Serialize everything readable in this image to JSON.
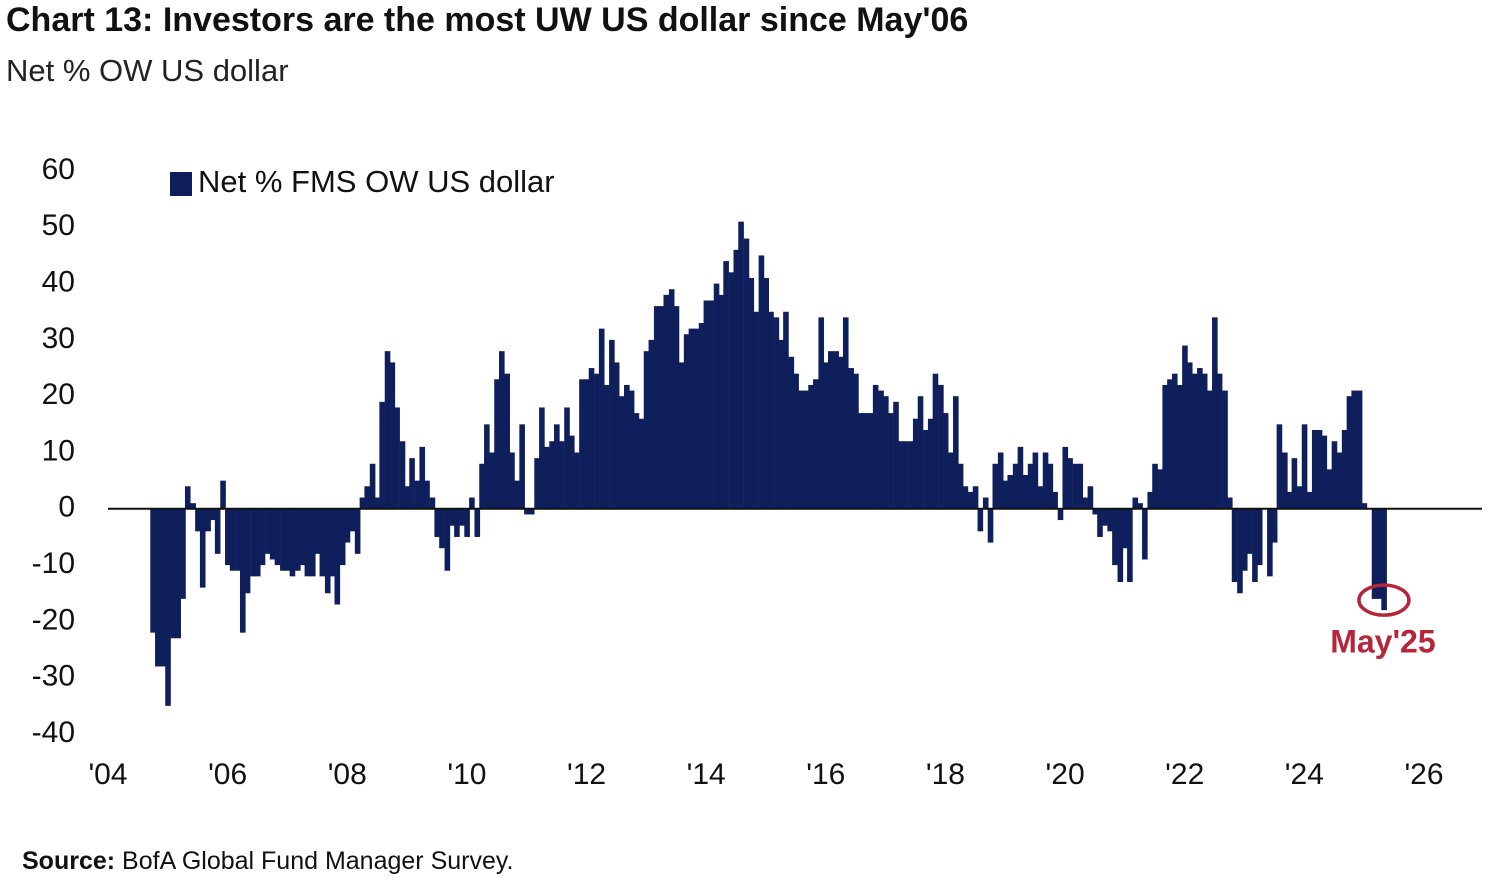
{
  "chart_data": {
    "type": "bar",
    "title": "Chart 13: Investors are the most UW US dollar since May'06",
    "subtitle": "Net % OW US dollar",
    "source_label": "Source:",
    "source_text": "BofA Global Fund Manager Survey.",
    "annotation": "May'25",
    "annotation_color": "#b5263a",
    "xlim": [
      2004,
      2026
    ],
    "xticks": [
      {
        "value": 2004,
        "label": "'04"
      },
      {
        "value": 2006,
        "label": "'06"
      },
      {
        "value": 2008,
        "label": "'08"
      },
      {
        "value": 2010,
        "label": "'10"
      },
      {
        "value": 2012,
        "label": "'12"
      },
      {
        "value": 2014,
        "label": "'14"
      },
      {
        "value": 2016,
        "label": "'16"
      },
      {
        "value": 2018,
        "label": "'18"
      },
      {
        "value": 2020,
        "label": "'20"
      },
      {
        "value": 2022,
        "label": "'22"
      },
      {
        "value": 2024,
        "label": "'24"
      },
      {
        "value": 2026,
        "label": "'26"
      }
    ],
    "ylim": [
      -40,
      60
    ],
    "yticks": [
      -40,
      -30,
      -20,
      -10,
      0,
      10,
      20,
      30,
      40,
      50,
      60
    ],
    "legend": "top-left",
    "x": [
      2004.75,
      2004.83,
      2004.92,
      2005,
      2005.08,
      2005.17,
      2005.25,
      2005.33,
      2005.42,
      2005.5,
      2005.58,
      2005.67,
      2005.75,
      2005.83,
      2005.92,
      2006,
      2006.08,
      2006.17,
      2006.25,
      2006.33,
      2006.42,
      2006.5,
      2006.58,
      2006.67,
      2006.75,
      2006.83,
      2006.92,
      2007,
      2007.08,
      2007.17,
      2007.25,
      2007.33,
      2007.42,
      2007.5,
      2007.58,
      2007.67,
      2007.75,
      2007.83,
      2007.92,
      2008,
      2008.08,
      2008.17,
      2008.25,
      2008.33,
      2008.42,
      2008.5,
      2008.58,
      2008.67,
      2008.75,
      2008.83,
      2008.92,
      2009,
      2009.08,
      2009.17,
      2009.25,
      2009.33,
      2009.42,
      2009.5,
      2009.58,
      2009.67,
      2009.75,
      2009.83,
      2009.92,
      2010,
      2010.08,
      2010.17,
      2010.25,
      2010.33,
      2010.42,
      2010.5,
      2010.58,
      2010.67,
      2010.75,
      2010.83,
      2010.92,
      2011,
      2011.08,
      2011.17,
      2011.25,
      2011.33,
      2011.42,
      2011.5,
      2011.58,
      2011.67,
      2011.75,
      2011.83,
      2011.92,
      2012,
      2012.08,
      2012.17,
      2012.25,
      2012.33,
      2012.42,
      2012.5,
      2012.58,
      2012.67,
      2012.75,
      2012.83,
      2012.92,
      2013,
      2013.08,
      2013.17,
      2013.25,
      2013.33,
      2013.42,
      2013.5,
      2013.58,
      2013.67,
      2013.75,
      2013.83,
      2013.92,
      2014,
      2014.08,
      2014.17,
      2014.25,
      2014.33,
      2014.42,
      2014.5,
      2014.58,
      2014.67,
      2014.75,
      2014.83,
      2014.92,
      2015,
      2015.08,
      2015.17,
      2015.25,
      2015.33,
      2015.42,
      2015.5,
      2015.58,
      2015.67,
      2015.75,
      2015.83,
      2015.92,
      2016,
      2016.08,
      2016.17,
      2016.25,
      2016.33,
      2016.42,
      2016.5,
      2016.58,
      2016.67,
      2016.75,
      2016.83,
      2016.92,
      2017,
      2017.08,
      2017.17,
      2017.25,
      2017.33,
      2017.42,
      2017.5,
      2017.58,
      2017.67,
      2017.75,
      2017.83,
      2017.92,
      2018,
      2018.08,
      2018.17,
      2018.25,
      2018.33,
      2018.42,
      2018.5,
      2018.58,
      2018.67,
      2018.75,
      2018.83,
      2018.92,
      2019,
      2019.08,
      2019.17,
      2019.25,
      2019.33,
      2019.42,
      2019.5,
      2019.58,
      2019.67,
      2019.75,
      2019.83,
      2019.92,
      2020,
      2020.08,
      2020.17,
      2020.25,
      2020.33,
      2020.42,
      2020.5,
      2020.58,
      2020.67,
      2020.75,
      2020.83,
      2020.92,
      2021,
      2021.08,
      2021.17,
      2021.25,
      2021.33,
      2021.42,
      2021.5,
      2021.58,
      2021.67,
      2021.75,
      2021.83,
      2021.92,
      2022,
      2022.08,
      2022.17,
      2022.25,
      2022.33,
      2022.42,
      2022.5,
      2022.58,
      2022.67,
      2022.75,
      2022.83,
      2022.92,
      2023,
      2023.08,
      2023.17,
      2023.25,
      2023.33,
      2023.42,
      2023.5,
      2023.58,
      2023.67,
      2023.75,
      2023.83,
      2023.92,
      2024,
      2024.08,
      2024.17,
      2024.25,
      2024.33,
      2024.42,
      2024.5,
      2024.58,
      2024.67,
      2024.75,
      2024.83,
      2024.92,
      2025,
      2025.08,
      2025.17,
      2025.25,
      2025.33
    ],
    "series": [
      {
        "name": "Net % FMS OW US dollar",
        "color": "#0f1f5c",
        "values": [
          -22,
          -28,
          -28,
          -35,
          -23,
          -23,
          -16,
          4,
          1,
          -4,
          -14,
          -4,
          -2,
          -8,
          5,
          -10,
          -11,
          -11,
          -22,
          -15,
          -12,
          -12,
          -10,
          -8,
          -9,
          -10,
          -11,
          -11,
          -12,
          -11,
          -10,
          -12,
          -12,
          -8,
          -12,
          -15,
          -12,
          -17,
          -10,
          -6,
          -4,
          -8,
          2,
          4,
          8,
          2,
          19,
          28,
          26,
          18,
          12,
          4,
          9,
          5,
          11,
          5,
          2,
          -5,
          -7,
          -11,
          -3,
          -5,
          -3,
          -5,
          2,
          -5,
          8,
          15,
          10,
          23,
          28,
          24,
          10,
          5,
          15,
          -1,
          -1,
          9,
          18,
          11,
          12,
          15,
          12,
          18,
          13,
          10,
          23,
          23,
          25,
          24,
          32,
          22,
          30,
          26,
          20,
          22,
          21,
          17,
          16,
          28,
          30,
          36,
          36,
          38,
          39,
          36,
          26,
          31,
          32,
          32,
          33,
          37,
          37,
          40,
          38,
          44,
          42,
          46,
          51,
          48,
          41,
          35,
          45,
          41,
          35,
          34,
          30,
          35,
          27,
          24,
          21,
          21,
          22,
          23,
          34,
          26,
          28,
          28,
          27,
          34,
          25,
          24,
          17,
          17,
          17,
          22,
          21,
          20,
          17,
          19,
          12,
          12,
          12,
          16,
          20,
          14,
          16,
          24,
          22,
          17,
          10,
          20,
          8,
          4,
          3,
          4,
          -4,
          2,
          -6,
          8,
          10,
          5,
          6,
          8,
          11,
          6,
          8,
          10,
          4,
          10,
          8,
          3,
          -2,
          11,
          9,
          8,
          8,
          2,
          4,
          -1,
          -5,
          -3,
          -4,
          -10,
          -13,
          -7,
          -13,
          2,
          1,
          -9,
          3,
          8,
          7,
          22,
          23,
          24,
          22,
          29,
          26,
          24,
          25,
          24,
          21,
          34,
          24,
          21,
          2,
          -13,
          -15,
          -11,
          -8,
          -13,
          -10,
          0,
          -12,
          -6,
          15,
          10,
          3,
          9,
          4,
          15,
          3,
          14,
          14,
          13,
          7,
          12,
          10,
          14,
          20,
          21,
          21,
          1,
          0,
          -16,
          -16,
          -18
        ]
      }
    ]
  }
}
